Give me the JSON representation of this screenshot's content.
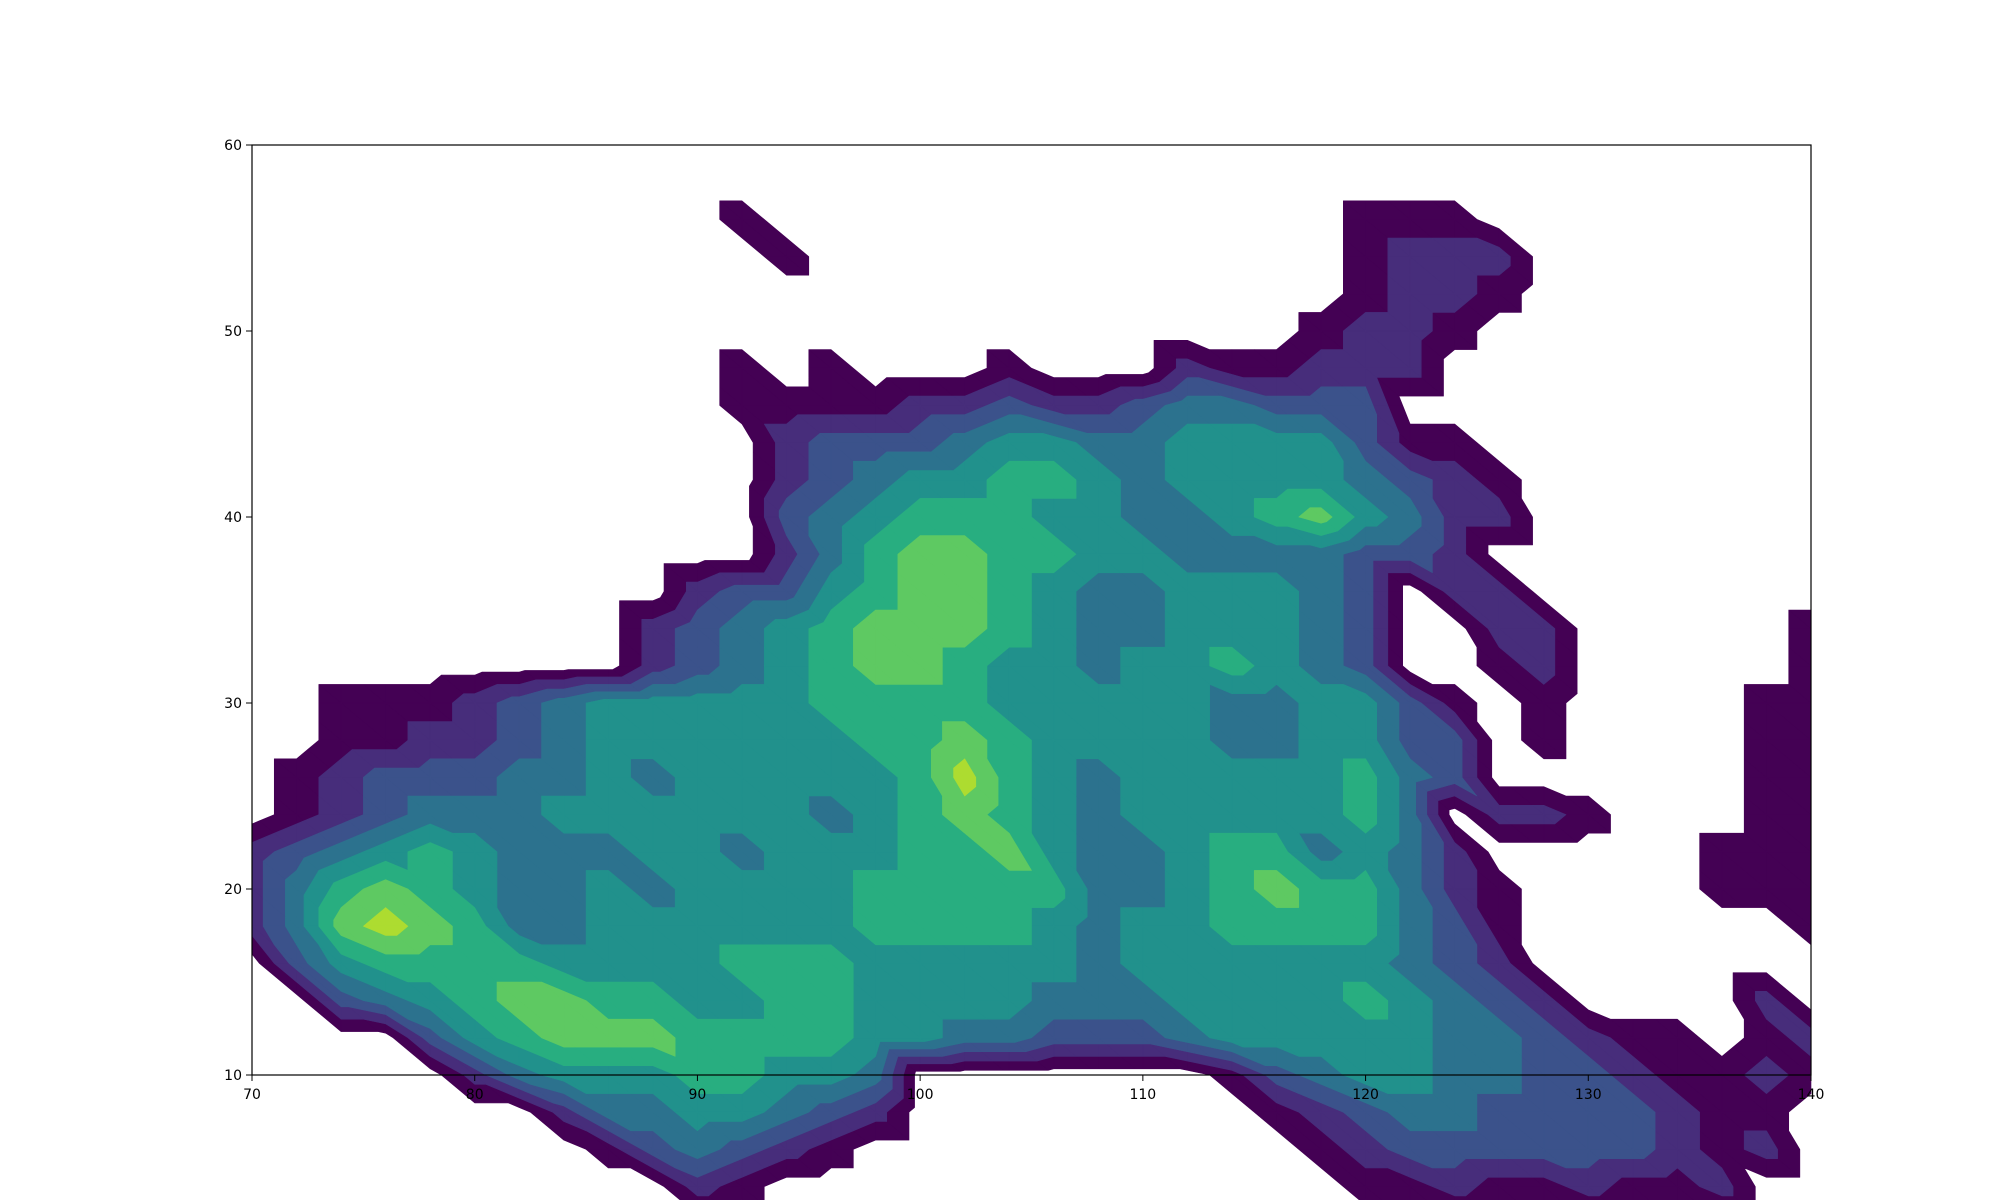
{
  "chart_data": {
    "type": "heatmap",
    "subtype": "filled-contour",
    "title": "",
    "xlabel": "",
    "ylabel": "",
    "xlim": [
      70,
      140
    ],
    "ylim": [
      10,
      60
    ],
    "x_ticks": [
      70,
      80,
      90,
      100,
      110,
      120,
      130,
      140
    ],
    "y_ticks": [
      10,
      20,
      30,
      40,
      50,
      60
    ],
    "grid": false,
    "legend": "none",
    "colormap": [
      "#440154",
      "#472d7b",
      "#3b528b",
      "#2c728e",
      "#21918c",
      "#28ae80",
      "#5ec962",
      "#addc30",
      "#fde725"
    ],
    "contour_levels": [
      0.5,
      1.5,
      2.5,
      3.5,
      4.5,
      5.5,
      6.5,
      7.5,
      8.5
    ],
    "grid_step": 2,
    "grid_data": [
      [
        0,
        0,
        0,
        0,
        0,
        0,
        0,
        0,
        0,
        0,
        0,
        0,
        0,
        0,
        0,
        0,
        0,
        0,
        0,
        0,
        0,
        0,
        0,
        0,
        0,
        0,
        0,
        0,
        0,
        0,
        0,
        0,
        0,
        0,
        0,
        0
      ],
      [
        0,
        0,
        0,
        0,
        0,
        0,
        0,
        0,
        0,
        0,
        0,
        0,
        0,
        0,
        0,
        0,
        0,
        0,
        0,
        0,
        0,
        0,
        0,
        0,
        0,
        0,
        0,
        0,
        0,
        0,
        0,
        0,
        0,
        0,
        0,
        0
      ],
      [
        0,
        0,
        0,
        0,
        0,
        0,
        0,
        0,
        0,
        0,
        0,
        1,
        0,
        0,
        0,
        0,
        0,
        0,
        0,
        0,
        0,
        0,
        0,
        0,
        0,
        1,
        1,
        1,
        0,
        0,
        0,
        0,
        0,
        0,
        0,
        0
      ],
      [
        0,
        0,
        0,
        0,
        0,
        0,
        0,
        0,
        0,
        0,
        0,
        0,
        1,
        0,
        0,
        0,
        0,
        0,
        0,
        0,
        0,
        0,
        0,
        0,
        0,
        1,
        2,
        2,
        2,
        0,
        0,
        0,
        0,
        0,
        0,
        0
      ],
      [
        0,
        0,
        0,
        0,
        0,
        0,
        0,
        0,
        0,
        0,
        0,
        0,
        0,
        0,
        0,
        0,
        0,
        0,
        0,
        0,
        0,
        0,
        0,
        0,
        0,
        1,
        2,
        2,
        1,
        0,
        0,
        0,
        0,
        0,
        0,
        0
      ],
      [
        0,
        0,
        0,
        0,
        0,
        0,
        0,
        0,
        0,
        0,
        0,
        0,
        0,
        0,
        0,
        0,
        0,
        0,
        0,
        0,
        0,
        0,
        0,
        0,
        1,
        2,
        2,
        1,
        0,
        0,
        0,
        0,
        0,
        0,
        0,
        0
      ],
      [
        0,
        0,
        0,
        0,
        0,
        0,
        0,
        0,
        0,
        0,
        0,
        1,
        0,
        1,
        0,
        0,
        0,
        1,
        0,
        0,
        0,
        2,
        1,
        1,
        2,
        2,
        2,
        0,
        0,
        0,
        0,
        0,
        0,
        0,
        0,
        0
      ],
      [
        0,
        0,
        0,
        0,
        0,
        0,
        0,
        0,
        0,
        0,
        0,
        1,
        1,
        1,
        1,
        2,
        2,
        3,
        2,
        2,
        3,
        4,
        4,
        3,
        3,
        3,
        0,
        0,
        0,
        0,
        0,
        0,
        0,
        0,
        0,
        0
      ],
      [
        0,
        0,
        0,
        0,
        0,
        0,
        0,
        0,
        0,
        0,
        0,
        0,
        2,
        3,
        3,
        3,
        4,
        5,
        5,
        4,
        4,
        5,
        5,
        5,
        5,
        3,
        1,
        1,
        0,
        0,
        0,
        0,
        0,
        0,
        0,
        0
      ],
      [
        0,
        0,
        0,
        0,
        0,
        0,
        0,
        0,
        0,
        0,
        0,
        0,
        2,
        3,
        4,
        5,
        5,
        6,
        6,
        5,
        4,
        5,
        5,
        5,
        5,
        4,
        3,
        2,
        1,
        0,
        0,
        0,
        0,
        0,
        0,
        0
      ],
      [
        0,
        0,
        0,
        0,
        0,
        0,
        0,
        0,
        0,
        0,
        0,
        0,
        3,
        4,
        5,
        6,
        6,
        6,
        5,
        5,
        4,
        4,
        5,
        6,
        7,
        5,
        4,
        2,
        2,
        0,
        0,
        0,
        0,
        0,
        0,
        0
      ],
      [
        0,
        0,
        0,
        0,
        0,
        0,
        0,
        0,
        0,
        0,
        0,
        0,
        2,
        4,
        6,
        7,
        7,
        6,
        6,
        5,
        5,
        4,
        4,
        4,
        4,
        3,
        3,
        2,
        0,
        0,
        0,
        0,
        0,
        0,
        0,
        0
      ],
      [
        0,
        0,
        0,
        0,
        0,
        0,
        0,
        0,
        0,
        0,
        2,
        3,
        3,
        5,
        6,
        7,
        7,
        6,
        5,
        4,
        4,
        5,
        5,
        5,
        4,
        3,
        0,
        2,
        2,
        0,
        0,
        0,
        0,
        0,
        0,
        0
      ],
      [
        0,
        0,
        0,
        0,
        0,
        0,
        0,
        0,
        0,
        2,
        3,
        4,
        5,
        6,
        7,
        7,
        7,
        6,
        5,
        4,
        4,
        5,
        5,
        5,
        4,
        3,
        0,
        0,
        2,
        2,
        0,
        0,
        0,
        0,
        0,
        1
      ],
      [
        0,
        0,
        0,
        0,
        0,
        0,
        0,
        0,
        0,
        2,
        3,
        4,
        5,
        6,
        7,
        7,
        6,
        5,
        5,
        4,
        5,
        5,
        6,
        5,
        4,
        3,
        0,
        0,
        1,
        2,
        0,
        0,
        0,
        0,
        0,
        1
      ],
      [
        0,
        0,
        1,
        1,
        1,
        2,
        3,
        4,
        5,
        5,
        5,
        5,
        5,
        6,
        6,
        6,
        6,
        5,
        5,
        5,
        5,
        5,
        4,
        4,
        5,
        5,
        3,
        1,
        0,
        1,
        0,
        0,
        0,
        0,
        1,
        1
      ],
      [
        0,
        0,
        1,
        1,
        2,
        2,
        3,
        4,
        5,
        5,
        5,
        5,
        5,
        5,
        6,
        6,
        7,
        6,
        5,
        5,
        5,
        5,
        4,
        4,
        5,
        5,
        3,
        3,
        0,
        1,
        0,
        0,
        0,
        0,
        1,
        1
      ],
      [
        0,
        1,
        2,
        3,
        3,
        3,
        4,
        4,
        5,
        4,
        5,
        5,
        5,
        5,
        5,
        6,
        8,
        6,
        5,
        4,
        5,
        5,
        5,
        5,
        5,
        6,
        4,
        3,
        0,
        0,
        0,
        0,
        0,
        0,
        1,
        1
      ],
      [
        0,
        1,
        2,
        3,
        4,
        4,
        4,
        5,
        5,
        5,
        5,
        5,
        5,
        4,
        5,
        6,
        7,
        6,
        5,
        4,
        5,
        5,
        5,
        5,
        5,
        6,
        4,
        0,
        2,
        2,
        1,
        0,
        0,
        0,
        1,
        1
      ],
      [
        2,
        3,
        4,
        5,
        6,
        5,
        4,
        4,
        4,
        5,
        5,
        4,
        5,
        5,
        5,
        6,
        6,
        7,
        5,
        4,
        4,
        5,
        6,
        6,
        4,
        5,
        4,
        2,
        0,
        0,
        0,
        0,
        0,
        1,
        1,
        1
      ],
      [
        2,
        4,
        6,
        7,
        6,
        5,
        4,
        4,
        5,
        4,
        5,
        5,
        5,
        5,
        6,
        6,
        6,
        6,
        6,
        4,
        4,
        5,
        6,
        7,
        6,
        6,
        4,
        2,
        1,
        0,
        0,
        0,
        0,
        1,
        1,
        1
      ],
      [
        2,
        4,
        7,
        8,
        7,
        6,
        4,
        4,
        5,
        5,
        5,
        5,
        5,
        5,
        6,
        6,
        6,
        6,
        5,
        4,
        5,
        5,
        6,
        6,
        6,
        6,
        4,
        3,
        1,
        0,
        0,
        0,
        0,
        0,
        0,
        1
      ],
      [
        0,
        3,
        5,
        6,
        6,
        6,
        6,
        5,
        5,
        5,
        5,
        6,
        6,
        6,
        5,
        5,
        5,
        5,
        5,
        4,
        5,
        5,
        5,
        5,
        5,
        5,
        4,
        3,
        2,
        0,
        0,
        0,
        0,
        0,
        0,
        0
      ],
      [
        0,
        0,
        3,
        4,
        5,
        6,
        7,
        7,
        6,
        6,
        5,
        5,
        6,
        6,
        5,
        5,
        5,
        5,
        4,
        4,
        4,
        5,
        5,
        5,
        5,
        6,
        5,
        4,
        3,
        2,
        0,
        0,
        0,
        0,
        2,
        0
      ],
      [
        0,
        0,
        0,
        0,
        3,
        5,
        6,
        7,
        7,
        7,
        6,
        6,
        6,
        6,
        5,
        5,
        4,
        4,
        3,
        3,
        3,
        4,
        5,
        5,
        5,
        5,
        5,
        4,
        4,
        3,
        2,
        1,
        1,
        0,
        1,
        2
      ],
      [
        0,
        0,
        0,
        0,
        0,
        2,
        4,
        5,
        5,
        5,
        6,
        6,
        5,
        5,
        4,
        0,
        0,
        0,
        0,
        0,
        0,
        0,
        1,
        3,
        4,
        5,
        5,
        4,
        4,
        3,
        3,
        2,
        1,
        1,
        2,
        1
      ],
      [
        0,
        0,
        0,
        0,
        0,
        0,
        0,
        2,
        4,
        4,
        5,
        5,
        4,
        3,
        2,
        0,
        0,
        0,
        0,
        0,
        0,
        0,
        0,
        1,
        2,
        3,
        4,
        4,
        3,
        3,
        3,
        3,
        2,
        1,
        1,
        0
      ],
      [
        0,
        0,
        0,
        0,
        0,
        0,
        0,
        0,
        1,
        3,
        4,
        3,
        2,
        1,
        0,
        0,
        0,
        0,
        0,
        0,
        0,
        0,
        0,
        0,
        1,
        2,
        3,
        3,
        3,
        3,
        3,
        3,
        2,
        1,
        2,
        0
      ],
      [
        0,
        0,
        0,
        0,
        0,
        0,
        0,
        0,
        0,
        0,
        2,
        1,
        0,
        0,
        0,
        0,
        0,
        0,
        0,
        0,
        0,
        0,
        0,
        0,
        0,
        1,
        1,
        2,
        1,
        1,
        2,
        1,
        1,
        2,
        0,
        0
      ],
      [
        0,
        0,
        0,
        0,
        0,
        0,
        0,
        0,
        0,
        0,
        0,
        0,
        0,
        0,
        0,
        0,
        0,
        0,
        0,
        0,
        0,
        0,
        0,
        1,
        0,
        0,
        0,
        0,
        0,
        0,
        0,
        0,
        0,
        0,
        0,
        0
      ],
      [
        0,
        0,
        0,
        0,
        0,
        0,
        0,
        0,
        0,
        0,
        0,
        0,
        0,
        0,
        0,
        0,
        0,
        0,
        0,
        0,
        0,
        0,
        0,
        0,
        0,
        0,
        0,
        0,
        0,
        0,
        0,
        0,
        0,
        0,
        0,
        0
      ]
    ]
  }
}
